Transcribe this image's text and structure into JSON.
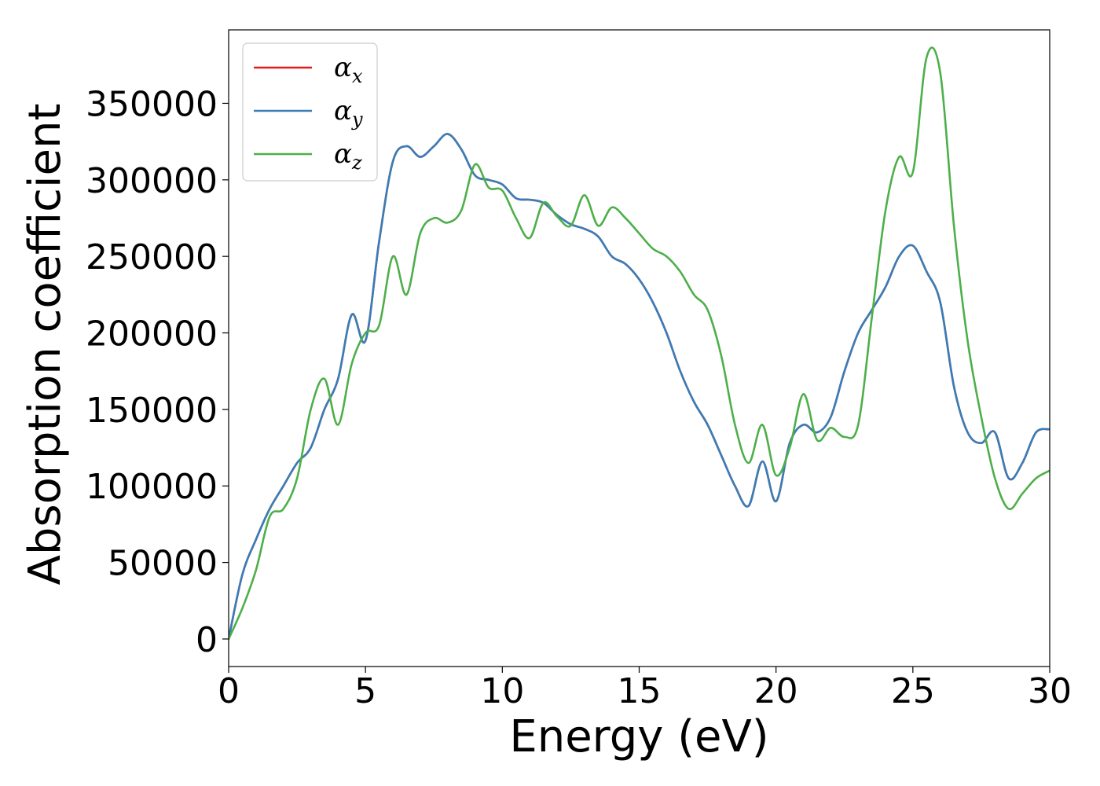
{
  "chart_data": {
    "type": "line",
    "title": "",
    "xlabel": "Energy (eV)",
    "ylabel": "Absorption coefficient",
    "xlim": [
      0,
      30
    ],
    "ylim": [
      -18000,
      398000
    ],
    "xticks": [
      0,
      5,
      10,
      15,
      20,
      25,
      30
    ],
    "yticks": [
      0,
      50000,
      100000,
      150000,
      200000,
      250000,
      300000,
      350000
    ],
    "grid": false,
    "legend_position": "upper-left",
    "series": [
      {
        "name": "αx",
        "legend_main": "α",
        "legend_sub": "x",
        "color": "#e41a1c",
        "x": [
          0,
          0.5,
          1,
          1.5,
          2,
          2.5,
          3,
          3.5,
          4,
          4.5,
          5,
          5.5,
          6,
          6.5,
          7,
          7.5,
          8,
          8.5,
          9,
          9.5,
          10,
          10.5,
          11,
          11.5,
          12,
          12.5,
          13,
          13.5,
          14,
          14.5,
          15,
          15.5,
          16,
          16.5,
          17,
          17.5,
          18,
          18.5,
          19,
          19.5,
          20,
          20.5,
          21,
          21.5,
          22,
          22.5,
          23,
          23.5,
          24,
          24.5,
          25,
          25.5,
          26,
          26.5,
          27,
          27.5,
          28,
          28.5,
          29,
          29.5,
          30
        ],
        "values": [
          0,
          42000,
          65000,
          85000,
          100000,
          115000,
          125000,
          150000,
          170000,
          212000,
          195000,
          260000,
          312000,
          322000,
          315000,
          322000,
          330000,
          320000,
          303000,
          300000,
          297000,
          288000,
          287000,
          285000,
          277000,
          271000,
          268000,
          263000,
          250000,
          245000,
          235000,
          220000,
          200000,
          175000,
          155000,
          140000,
          120000,
          100000,
          87000,
          116000,
          90000,
          128000,
          140000,
          135000,
          145000,
          175000,
          200000,
          215000,
          230000,
          250000,
          257000,
          240000,
          220000,
          165000,
          135000,
          128000,
          135000,
          105000,
          115000,
          135000,
          137000
        ]
      },
      {
        "name": "αy",
        "legend_main": "α",
        "legend_sub": "y",
        "color": "#377eb8",
        "x": [
          0,
          0.5,
          1,
          1.5,
          2,
          2.5,
          3,
          3.5,
          4,
          4.5,
          5,
          5.5,
          6,
          6.5,
          7,
          7.5,
          8,
          8.5,
          9,
          9.5,
          10,
          10.5,
          11,
          11.5,
          12,
          12.5,
          13,
          13.5,
          14,
          14.5,
          15,
          15.5,
          16,
          16.5,
          17,
          17.5,
          18,
          18.5,
          19,
          19.5,
          20,
          20.5,
          21,
          21.5,
          22,
          22.5,
          23,
          23.5,
          24,
          24.5,
          25,
          25.5,
          26,
          26.5,
          27,
          27.5,
          28,
          28.5,
          29,
          29.5,
          30
        ],
        "values": [
          0,
          42000,
          65000,
          85000,
          100000,
          115000,
          125000,
          150000,
          170000,
          212000,
          195000,
          260000,
          312000,
          322000,
          315000,
          322000,
          330000,
          320000,
          303000,
          300000,
          297000,
          288000,
          287000,
          285000,
          277000,
          271000,
          268000,
          263000,
          250000,
          245000,
          235000,
          220000,
          200000,
          175000,
          155000,
          140000,
          120000,
          100000,
          87000,
          116000,
          90000,
          128000,
          140000,
          135000,
          145000,
          175000,
          200000,
          215000,
          230000,
          250000,
          257000,
          240000,
          220000,
          165000,
          135000,
          128000,
          135000,
          105000,
          115000,
          135000,
          137000
        ]
      },
      {
        "name": "αz",
        "legend_main": "α",
        "legend_sub": "z",
        "color": "#4daf4a",
        "x": [
          0,
          0.5,
          1,
          1.5,
          2,
          2.5,
          3,
          3.5,
          4,
          4.5,
          5,
          5.5,
          6,
          6.5,
          7,
          7.5,
          8,
          8.5,
          9,
          9.5,
          10,
          10.5,
          11,
          11.5,
          12,
          12.5,
          13,
          13.5,
          14,
          14.5,
          15,
          15.5,
          16,
          16.5,
          17,
          17.5,
          18,
          18.5,
          19,
          19.5,
          20,
          20.5,
          21,
          21.5,
          22,
          22.5,
          23,
          23.5,
          24,
          24.5,
          25,
          25.5,
          26,
          26.5,
          27,
          27.5,
          28,
          28.5,
          29,
          29.5,
          30
        ],
        "values": [
          0,
          20000,
          45000,
          80000,
          85000,
          105000,
          150000,
          170000,
          140000,
          180000,
          200000,
          205000,
          250000,
          225000,
          265000,
          275000,
          272000,
          280000,
          310000,
          295000,
          293000,
          275000,
          262000,
          285000,
          276000,
          270000,
          290000,
          270000,
          282000,
          275000,
          265000,
          255000,
          250000,
          240000,
          225000,
          215000,
          185000,
          140000,
          115000,
          140000,
          107000,
          125000,
          160000,
          130000,
          138000,
          132000,
          140000,
          210000,
          280000,
          315000,
          305000,
          380000,
          370000,
          270000,
          195000,
          145000,
          105000,
          85000,
          95000,
          105000,
          110000
        ]
      }
    ]
  }
}
